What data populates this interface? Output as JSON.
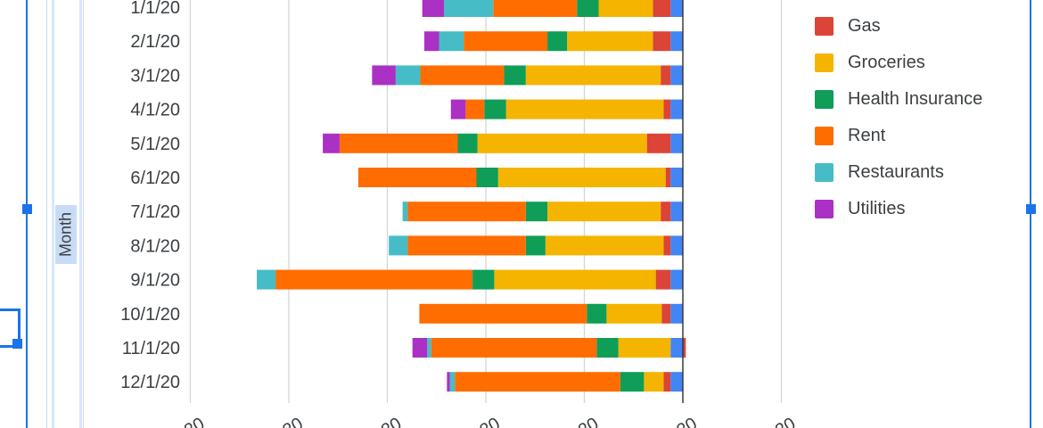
{
  "chart_data": {
    "type": "bar",
    "orientation": "horizontal",
    "stacked": true,
    "ylabel": "Month",
    "categories": [
      "1/1/20",
      "2/1/20",
      "3/1/20",
      "4/1/20",
      "5/1/20",
      "6/1/20",
      "7/1/20",
      "8/1/20",
      "9/1/20",
      "10/1/20",
      "11/1/20",
      "12/1/20"
    ],
    "grid": true,
    "series": [
      {
        "name": "",
        "color": "#4285f4",
        "values": [
          -125,
          -125,
          -125,
          -125,
          -125,
          -125,
          -125,
          -125,
          -125,
          -125,
          -125,
          -125
        ]
      },
      {
        "name": "Gas",
        "color": "#db4437",
        "values": [
          -180,
          -180,
          -100,
          -70,
          -240,
          -50,
          -100,
          -70,
          -150,
          -90,
          30,
          -70
        ]
      },
      {
        "name": "Groceries",
        "color": "#f4b400",
        "values": [
          -550,
          -870,
          -1370,
          -1600,
          -1720,
          -1700,
          -1150,
          -1200,
          -1640,
          -560,
          -530,
          -200
        ]
      },
      {
        "name": "Health Insurance",
        "color": "#0f9d58",
        "values": [
          -220,
          -200,
          -220,
          -220,
          -200,
          -220,
          -220,
          -200,
          -220,
          -200,
          -220,
          -240
        ]
      },
      {
        "name": "Rent",
        "color": "#ff6d00",
        "values": [
          -850,
          -850,
          -850,
          -190,
          -1200,
          -1200,
          -1200,
          -1200,
          -2000,
          -1700,
          -1680,
          -1680
        ]
      },
      {
        "name": "Restaurants",
        "color": "#46bdc6",
        "values": [
          -500,
          -250,
          -250,
          0,
          0,
          0,
          -50,
          -190,
          -190,
          0,
          -40,
          -50
        ]
      },
      {
        "name": "Utilities",
        "color": "#ab30c4",
        "values": [
          -220,
          -150,
          -240,
          -150,
          -170,
          0,
          0,
          0,
          0,
          0,
          -150,
          -30
        ]
      }
    ],
    "legend_position": "right",
    "legend_entries": [
      "Gas",
      "Groceries",
      "Health Insurance",
      "Rent",
      "Restaurants",
      "Utilities"
    ]
  }
}
